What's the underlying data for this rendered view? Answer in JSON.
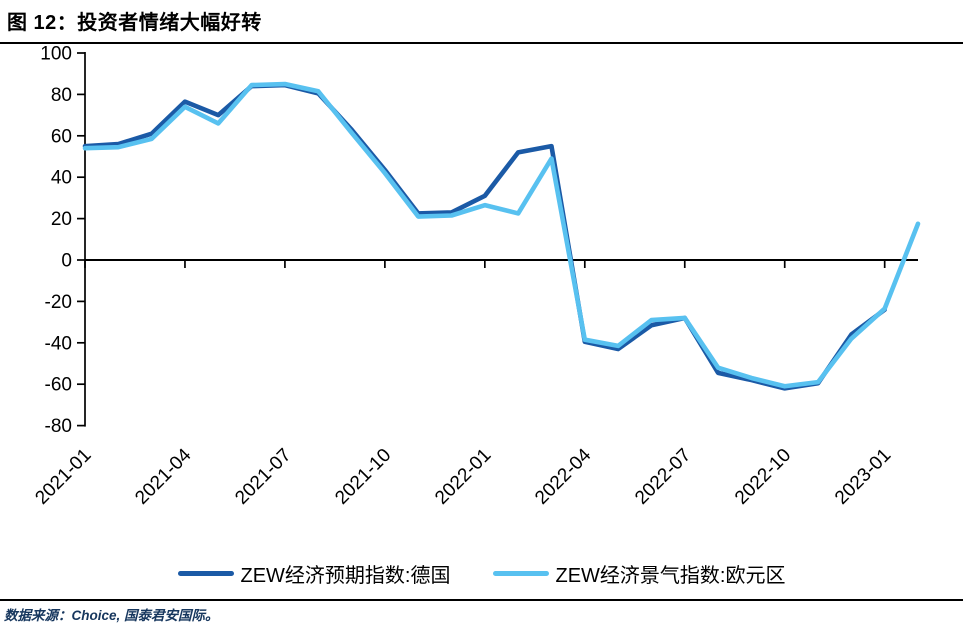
{
  "figure": {
    "title": "图 12：投资者情绪大幅好转",
    "source_label": "数据来源：Choice, 国泰君安国际。"
  },
  "colors": {
    "axis": "#000000",
    "germany_line": "#1B5AA6",
    "eurozone_line": "#58C1F0",
    "source_text": "#17375E",
    "title_text": "#000000"
  },
  "chart_data": {
    "type": "line",
    "title": "图 12：投资者情绪大幅好转",
    "xlabel": "",
    "ylabel": "",
    "ylim": [
      -80,
      100
    ],
    "grid": false,
    "legend_position": "bottom",
    "y_ticks": [
      100,
      80,
      60,
      40,
      20,
      0,
      -20,
      -40,
      -60,
      -80
    ],
    "x": [
      "2021-01",
      "2021-02",
      "2021-03",
      "2021-04",
      "2021-05",
      "2021-06",
      "2021-07",
      "2021-08",
      "2021-09",
      "2021-10",
      "2021-11",
      "2021-12",
      "2022-01",
      "2022-02",
      "2022-03",
      "2022-04",
      "2022-05",
      "2022-06",
      "2022-07",
      "2022-08",
      "2022-09",
      "2022-10",
      "2022-11",
      "2022-12",
      "2023-01",
      "2023-02"
    ],
    "x_tick_labels": [
      "2021-01",
      "2021-04",
      "2021-07",
      "2021-10",
      "2022-01",
      "2022-04",
      "2022-07",
      "2022-10",
      "2023-01"
    ],
    "series": [
      {
        "name": "ZEW经济预期指数:德国",
        "color": "#1B5AA6",
        "values": [
          55,
          56,
          61,
          76.5,
          70,
          84,
          84.5,
          80.5,
          63,
          43.5,
          22.5,
          23,
          31,
          52,
          55,
          -39.5,
          -43,
          -31.5,
          -28,
          -54.5,
          -58,
          -62,
          -59.5,
          -36,
          -24,
          null
        ]
      },
      {
        "name": "ZEW经济景气指数:欧元区",
        "color": "#58C1F0",
        "values": [
          54,
          54.5,
          58.5,
          74,
          66,
          84.5,
          85,
          81.5,
          61.5,
          42,
          21,
          21.5,
          26.5,
          22.5,
          49,
          -38.5,
          -41.5,
          -29,
          -28,
          -52,
          -57,
          -61,
          -59,
          -38,
          -23.5,
          17.5
        ]
      }
    ]
  }
}
